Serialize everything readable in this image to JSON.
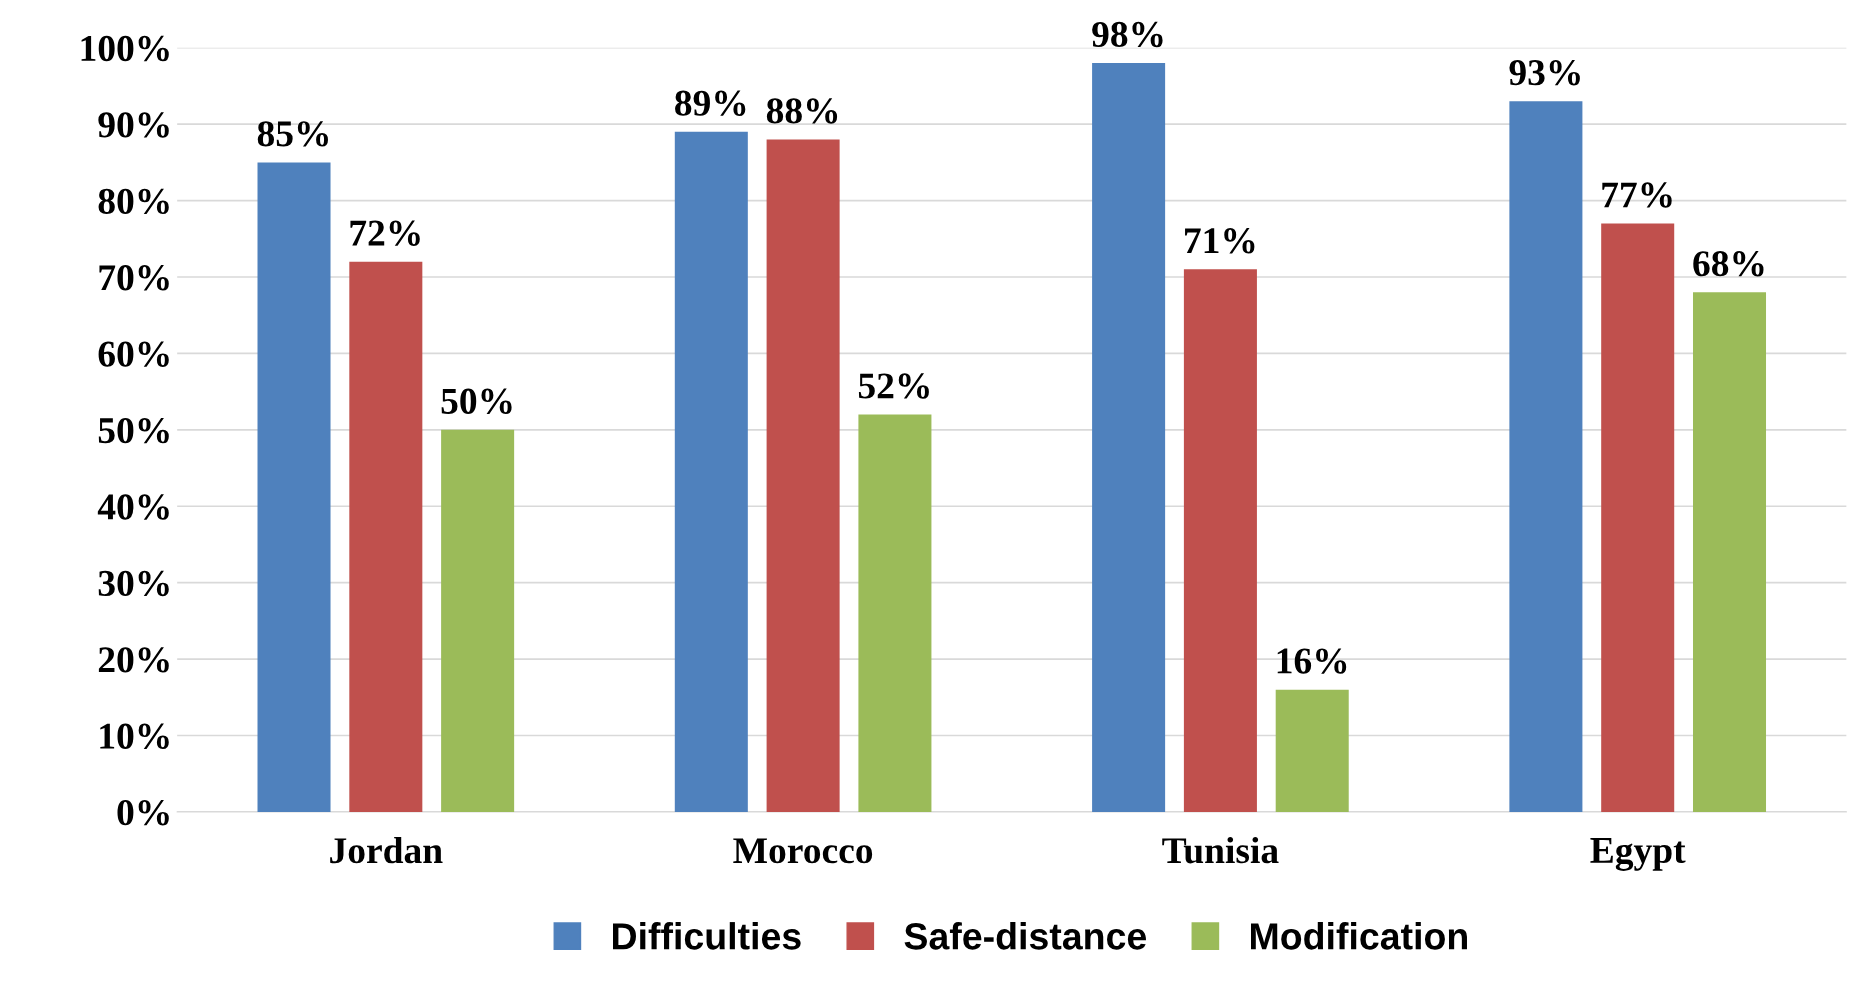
{
  "chart_data": {
    "type": "bar",
    "categories": [
      "Jordan",
      "Morocco",
      "Tunisia",
      "Egypt"
    ],
    "series": [
      {
        "name": "Difficulties",
        "color": "#4f81bd",
        "values": [
          85,
          89,
          98,
          93
        ]
      },
      {
        "name": "Safe-distance",
        "color": "#c0504d",
        "values": [
          72,
          88,
          71,
          77
        ]
      },
      {
        "name": "Modification",
        "color": "#9bbb59",
        "values": [
          50,
          52,
          16,
          68
        ]
      }
    ],
    "ylim": [
      0,
      100
    ],
    "yticks": [
      {
        "value": 0,
        "label": "0%"
      },
      {
        "value": 10,
        "label": "10%"
      },
      {
        "value": 20,
        "label": "20%"
      },
      {
        "value": 30,
        "label": "30%"
      },
      {
        "value": 40,
        "label": "40%"
      },
      {
        "value": 50,
        "label": "50%"
      },
      {
        "value": 60,
        "label": "60%"
      },
      {
        "value": 70,
        "label": "70%"
      },
      {
        "value": 80,
        "label": "80%"
      },
      {
        "value": 90,
        "label": "90%"
      },
      {
        "value": 100,
        "label": "100%"
      }
    ],
    "value_labels": [
      [
        "85%",
        "89%",
        "98%",
        "93%"
      ],
      [
        "72%",
        "88%",
        "71%",
        "77%"
      ],
      [
        "50%",
        "52%",
        "16%",
        "68%"
      ]
    ],
    "grid": "y",
    "legend": "bottom"
  }
}
